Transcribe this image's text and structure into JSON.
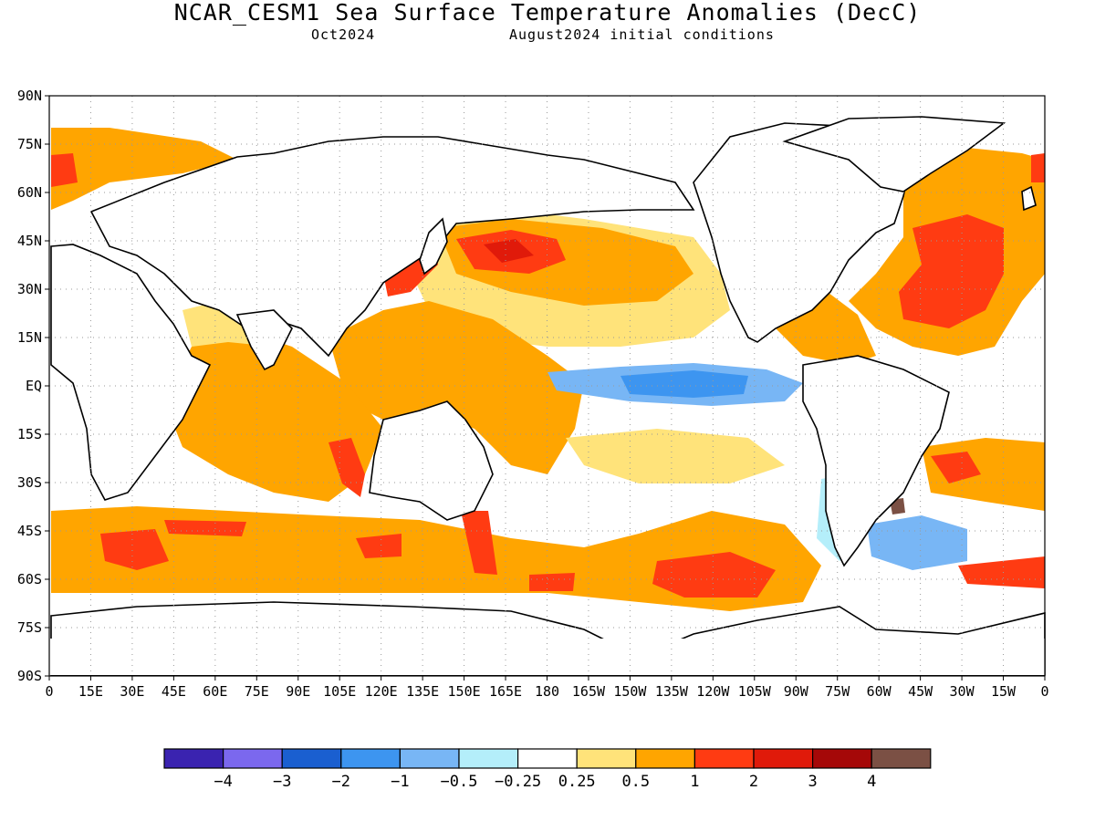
{
  "title": "NCAR_CESM1 Sea Surface Temperature Anomalies (DecC)",
  "subtitle_left": "Oct2024",
  "subtitle_right": "August2024 initial conditions",
  "lat_labels": [
    "90N",
    "75N",
    "60N",
    "45N",
    "30N",
    "15N",
    "EQ",
    "15S",
    "30S",
    "45S",
    "60S",
    "75S",
    "90S"
  ],
  "lon_labels": [
    "0",
    "15E",
    "30E",
    "45E",
    "60E",
    "75E",
    "90E",
    "105E",
    "120E",
    "135E",
    "150E",
    "165E",
    "180",
    "165W",
    "150W",
    "135W",
    "120W",
    "105W",
    "90W",
    "75W",
    "60W",
    "45W",
    "30W",
    "15W",
    "0"
  ],
  "colorbar": {
    "colors": [
      "#3a23b0",
      "#7b68ee",
      "#1a5fd0",
      "#3d95f0",
      "#78b6f5",
      "#b4eefa",
      "#ffffff",
      "#ffe37a",
      "#ffa500",
      "#ff3b12",
      "#e01a0a",
      "#a50808",
      "#7b5044"
    ],
    "labels": [
      "−4",
      "−3",
      "−2",
      "−1",
      "−0.5",
      "−0.25",
      "0.25",
      "0.5",
      "1",
      "2",
      "3",
      "4"
    ]
  },
  "map_colors": {
    "land": "#ffffff",
    "coast": "#000000",
    "grid": "#9a9a9a"
  }
}
